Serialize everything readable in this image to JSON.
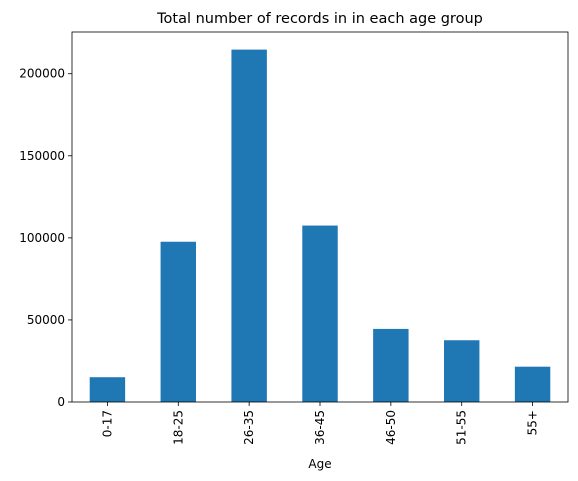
{
  "chart_data": {
    "type": "bar",
    "title": "Total number of records in in each age group",
    "xlabel": "Age",
    "ylabel": "",
    "categories": [
      "0-17",
      "18-25",
      "26-35",
      "36-45",
      "46-50",
      "51-55",
      "55+"
    ],
    "values": [
      15102,
      97634,
      214690,
      107499,
      44526,
      37618,
      21504
    ],
    "ylim": [
      0,
      225420
    ],
    "yticks": [
      {
        "value": 0,
        "label": "0"
      },
      {
        "value": 50000,
        "label": "50000"
      },
      {
        "value": 100000,
        "label": "100000"
      },
      {
        "value": 150000,
        "label": "150000"
      },
      {
        "value": 200000,
        "label": "200000"
      }
    ],
    "grid": false,
    "legend": "none",
    "bar_color": "#1f77b4"
  }
}
